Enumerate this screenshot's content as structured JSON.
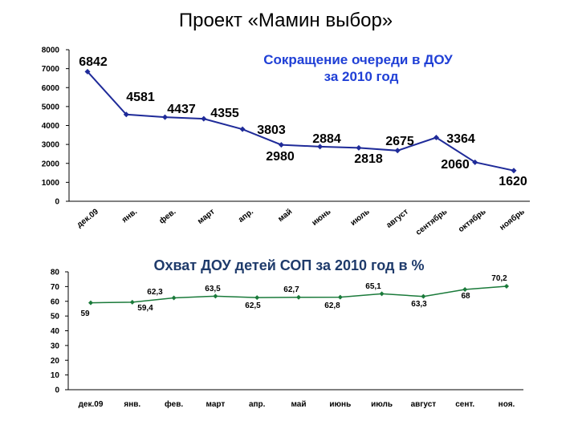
{
  "page": {
    "title": "Проект «Мамин выбор»"
  },
  "colors": {
    "chart1_line": "#1f2b99",
    "chart1_title": "#1f3fd6",
    "chart2_line": "#1a7a3a",
    "chart2_title": "#1f3b6b"
  },
  "chart_data": [
    {
      "type": "line",
      "title_lines": [
        "Сокращение очереди в ДОУ",
        "за 2010 год"
      ],
      "categories": [
        "дек.09",
        "янв.",
        "фев.",
        "март",
        "апр.",
        "май",
        "июнь",
        "июль",
        "август",
        "сентябрь",
        "октябрь",
        "ноябрь"
      ],
      "values": [
        6842,
        4581,
        4437,
        4355,
        3803,
        2980,
        2884,
        2818,
        2675,
        3364,
        2060,
        1620
      ],
      "y_ticks": [
        "0",
        "1000",
        "2000",
        "3000",
        "4000",
        "5000",
        "6000",
        "7000",
        "8000"
      ],
      "ylim": [
        0,
        8000
      ],
      "grid": false,
      "data_labels": true
    },
    {
      "type": "line",
      "title": "Охват ДОУ детей СОП за 2010 год в %",
      "categories": [
        "дек.09",
        "янв.",
        "фев.",
        "март",
        "апр.",
        "май",
        "июнь",
        "июль",
        "август",
        "сент.",
        "ноя."
      ],
      "values": [
        59,
        59.4,
        62.3,
        63.5,
        62.5,
        62.7,
        62.8,
        65.1,
        63.3,
        68,
        70.2
      ],
      "value_labels": [
        "59",
        "59,4",
        "62,3",
        "63,5",
        "62,5",
        "62,7",
        "62,8",
        "65,1",
        "63,3",
        "68",
        "70,2"
      ],
      "y_ticks": [
        "0",
        "10",
        "20",
        "30",
        "40",
        "50",
        "60",
        "70",
        "80"
      ],
      "ylim": [
        0,
        80
      ],
      "grid": false,
      "data_labels": true
    }
  ]
}
